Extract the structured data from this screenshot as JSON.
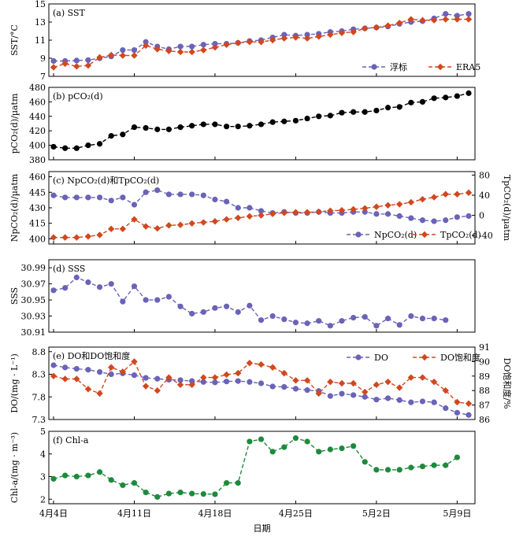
{
  "colors": {
    "buoy": "#6a63b8",
    "era5": "#d1481f",
    "black": "#000000",
    "green": "#1e8a3c"
  },
  "xaxis": {
    "label": "日期",
    "tick_labels": [
      "4月4日",
      "4月11日",
      "4月18日",
      "4月25日",
      "5月2日",
      "5月9日"
    ]
  },
  "chart_data": [
    {
      "type": "line",
      "title": "(a) SST",
      "ylabel": "SST/°C",
      "ylim": [
        7,
        15
      ],
      "yticks": [
        7,
        9,
        11,
        13,
        15
      ],
      "legend": "bottom-right",
      "series": [
        {
          "name": "浮标",
          "color": "#6a63b8",
          "marker": "circle",
          "values": [
            8.7,
            8.7,
            8.75,
            8.8,
            9.0,
            9.2,
            9.9,
            9.9,
            10.8,
            10.3,
            10.0,
            10.3,
            10.3,
            10.5,
            10.6,
            10.6,
            10.7,
            10.9,
            11.0,
            11.3,
            11.6,
            11.5,
            11.6,
            11.7,
            11.9,
            12.0,
            12.2,
            12.3,
            12.4,
            12.5,
            12.8,
            13.0,
            13.1,
            13.4,
            13.9,
            13.7,
            13.9
          ]
        },
        {
          "name": "ERA5",
          "color": "#d1481f",
          "marker": "diamond",
          "values": [
            8.0,
            8.4,
            8.1,
            8.2,
            9.1,
            9.35,
            9.3,
            9.3,
            10.4,
            10.0,
            9.8,
            9.7,
            9.7,
            9.9,
            10.2,
            10.5,
            10.7,
            10.8,
            10.8,
            11.0,
            11.2,
            11.3,
            11.2,
            11.4,
            11.6,
            11.8,
            11.9,
            12.3,
            12.4,
            12.6,
            12.9,
            13.3,
            13.2,
            13.2,
            13.3,
            13.3,
            13.3
          ]
        }
      ]
    },
    {
      "type": "line",
      "title": "(b) pCO₂(d)",
      "ylabel": "pCO₂(d)/µatm",
      "ylim": [
        380,
        480
      ],
      "yticks": [
        380,
        400,
        420,
        440,
        460,
        480
      ],
      "series": [
        {
          "name": "",
          "color": "#000000",
          "marker": "circle",
          "values": [
            398,
            396,
            396,
            400,
            402,
            413,
            415,
            425,
            424,
            422,
            422,
            425,
            427,
            429,
            429,
            426,
            426,
            427,
            429,
            432,
            433,
            434,
            437,
            440,
            441,
            445,
            446,
            446,
            448,
            452,
            453,
            459,
            460,
            465,
            466,
            468,
            472
          ]
        }
      ]
    },
    {
      "type": "line",
      "title": "(c) NpCO₂(d)和TpCO₂(d)",
      "ylabel": "NpCO₂(d)/µatm",
      "y2label": "TpCO₂(d)/µatm",
      "ylim": [
        395,
        465
      ],
      "yticks": [
        400,
        415,
        430,
        445,
        460
      ],
      "y2lim": [
        -57,
        87
      ],
      "y2ticks": [
        -40,
        0,
        40,
        80
      ],
      "legend": "bottom-right",
      "series": [
        {
          "name": "NpCO₂(d)",
          "color": "#6a63b8",
          "marker": "circle",
          "axis": "left",
          "values": [
            442,
            440,
            440,
            440,
            440,
            437,
            440,
            433,
            445,
            447,
            443,
            443,
            443,
            442,
            438,
            436,
            430,
            430,
            427,
            425,
            426,
            425,
            425,
            426,
            425,
            425,
            426,
            426,
            424,
            424,
            422,
            420,
            418,
            417,
            418,
            421,
            422
          ]
        },
        {
          "name": "TpCO₂(d)",
          "color": "#d1481f",
          "marker": "diamond",
          "axis": "right",
          "values": [
            -44,
            -44,
            -44,
            -42,
            -39,
            -27,
            -27,
            -8,
            -22,
            -26,
            -20,
            -19,
            -16,
            -14,
            -12,
            -8,
            -5,
            -2,
            0,
            3,
            5,
            6,
            6,
            7,
            9,
            10,
            12,
            14,
            17,
            20,
            22,
            26,
            32,
            36,
            42,
            42,
            45
          ]
        }
      ]
    },
    {
      "type": "line",
      "title": "(d) SSS",
      "ylabel": "SSS",
      "ylim": [
        30.91,
        31.0
      ],
      "yticks": [
        30.91,
        30.93,
        30.95,
        30.97,
        30.99
      ],
      "series": [
        {
          "name": "",
          "color": "#6a63b8",
          "marker": "circle",
          "values": [
            30.962,
            30.965,
            30.978,
            30.972,
            30.966,
            30.97,
            30.948,
            30.967,
            30.95,
            30.95,
            30.954,
            30.942,
            30.933,
            30.935,
            30.94,
            30.942,
            30.935,
            30.943,
            30.925,
            30.93,
            30.926,
            30.922,
            30.921,
            30.924,
            30.918,
            30.924,
            30.928,
            30.929,
            30.918,
            30.927,
            30.919,
            30.93,
            30.927,
            30.927,
            30.925
          ]
        }
      ]
    },
    {
      "type": "line",
      "title": "(e) DO和DO饱和度",
      "ylabel": "DO/(mg · L⁻¹)",
      "y2label": "DO饱和度/%",
      "ylim": [
        7.3,
        8.9
      ],
      "yticks": [
        7.3,
        7.8,
        8.3,
        8.8
      ],
      "y2lim": [
        86,
        91
      ],
      "y2ticks": [
        86,
        87,
        88,
        89,
        90,
        91
      ],
      "legend": "top-right",
      "series": [
        {
          "name": "DO",
          "color": "#6a63b8",
          "marker": "circle",
          "axis": "left",
          "values": [
            8.5,
            8.45,
            8.42,
            8.4,
            8.35,
            8.3,
            8.32,
            8.28,
            8.22,
            8.2,
            8.18,
            8.17,
            8.15,
            8.13,
            8.12,
            8.14,
            8.15,
            8.13,
            8.1,
            8.03,
            8.02,
            7.98,
            7.95,
            7.93,
            7.82,
            7.87,
            7.84,
            7.8,
            7.74,
            7.77,
            7.73,
            7.68,
            7.7,
            7.68,
            7.55,
            7.45,
            7.4
          ]
        },
        {
          "name": "DO饱和度",
          "color": "#d1481f",
          "marker": "diamond",
          "axis": "right",
          "values": [
            89.0,
            88.8,
            88.8,
            88.1,
            87.8,
            89.6,
            89.3,
            90.0,
            88.3,
            88.0,
            88.9,
            88.4,
            88.4,
            88.9,
            88.9,
            89.1,
            89.2,
            89.9,
            89.8,
            89.6,
            89.2,
            88.7,
            88.7,
            87.8,
            88.6,
            88.5,
            88.5,
            87.9,
            88.4,
            88.6,
            88.2,
            88.9,
            88.9,
            88.6,
            88.0,
            87.2,
            87.1
          ]
        }
      ]
    },
    {
      "type": "line",
      "title": "(f) Chl-a",
      "ylabel": "Chl-a/(mg · m⁻³)",
      "ylim": [
        1.8,
        5.0
      ],
      "yticks": [
        2,
        3,
        4,
        5
      ],
      "series": [
        {
          "name": "",
          "color": "#1e8a3c",
          "marker": "circle",
          "values": [
            2.9,
            3.05,
            3.0,
            3.05,
            3.2,
            2.85,
            2.62,
            2.72,
            2.3,
            2.1,
            2.25,
            2.3,
            2.25,
            2.23,
            2.22,
            2.72,
            2.72,
            4.55,
            4.65,
            4.1,
            4.3,
            4.7,
            4.55,
            4.1,
            4.2,
            4.25,
            4.35,
            3.65,
            3.3,
            3.3,
            3.3,
            3.4,
            3.45,
            3.5,
            3.5,
            3.85
          ]
        }
      ]
    }
  ]
}
